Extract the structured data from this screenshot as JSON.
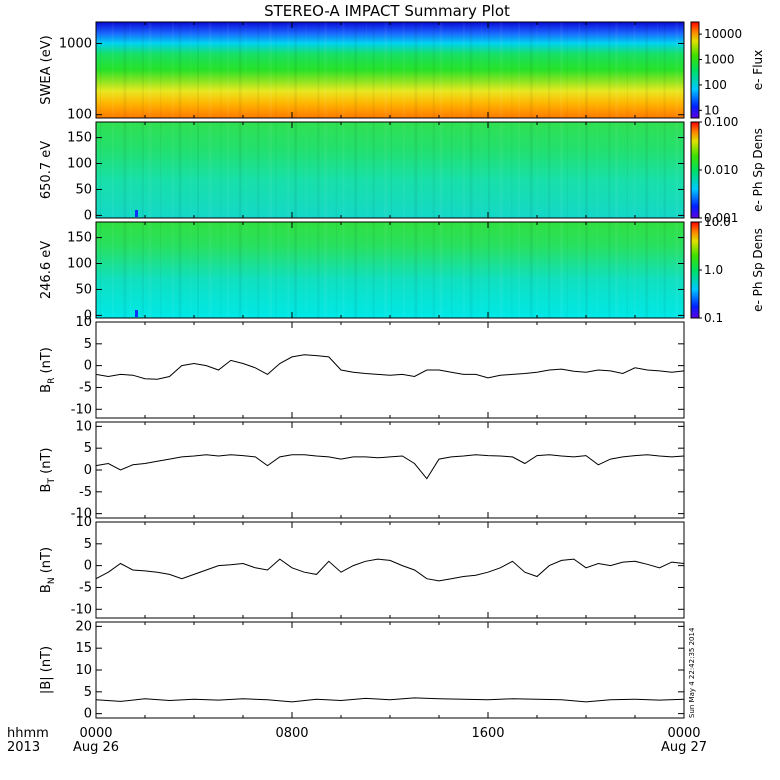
{
  "title": "STEREO-A IMPACT Summary Plot",
  "timestamp": "Sun May  4 22:42:35 2014",
  "footer": {
    "x_unit_label": "hhmm",
    "year": "2013",
    "start_date": "Aug 26",
    "end_date": "Aug 27"
  },
  "chart_data": [
    {
      "type": "heatmap",
      "panel": "swea-spectrogram",
      "ylabel": "SWEA (eV)",
      "yscale": "log",
      "ylim": [
        90,
        2000
      ],
      "yticks": [
        "1000",
        "100"
      ],
      "colorbar": {
        "label": "e- Flux",
        "scale": "log",
        "ticks": [
          "10000",
          "1000",
          "100",
          "10"
        ],
        "range": [
          5,
          30000
        ]
      }
    },
    {
      "type": "heatmap",
      "panel": "pad-650",
      "ylabel": "650.7 eV",
      "ylim": [
        -5,
        180
      ],
      "yticks": [
        "150",
        "100",
        "50",
        "0"
      ],
      "colorbar": {
        "label": "e- Ph Sp Dens",
        "scale": "log",
        "ticks": [
          "0.100",
          "0.010",
          "0.001"
        ],
        "range": [
          0.001,
          0.1
        ]
      }
    },
    {
      "type": "heatmap",
      "panel": "pad-246",
      "ylabel": "246.6 eV",
      "ylim": [
        -5,
        180
      ],
      "yticks": [
        "150",
        "100",
        "50",
        "0"
      ],
      "colorbar": {
        "label": "e- Ph Sp Dens",
        "scale": "log",
        "ticks": [
          "10.0",
          "1.0",
          "0.1"
        ],
        "range": [
          0.1,
          10
        ]
      }
    },
    {
      "type": "line",
      "panel": "br",
      "ylabel_main": "B",
      "ylabel_sub": "R",
      "ylabel_unit": " (nT)",
      "ylim": [
        -12,
        10
      ],
      "yticks": [
        "10",
        "5",
        "0",
        "-5",
        "-10"
      ],
      "x_hours": [
        0,
        0.5,
        1,
        1.5,
        2,
        2.5,
        3,
        3.5,
        4,
        4.5,
        5,
        5.5,
        6,
        6.5,
        7,
        7.5,
        8,
        8.5,
        9,
        9.5,
        10,
        10.5,
        11,
        11.5,
        12,
        12.5,
        13,
        13.5,
        14,
        14.5,
        15,
        15.5,
        16,
        16.5,
        17,
        17.5,
        18,
        18.5,
        19,
        19.5,
        20,
        20.5,
        21,
        21.5,
        22,
        22.5,
        23,
        23.5,
        24
      ],
      "values": [
        -2,
        -2.5,
        -2,
        -2.2,
        -3,
        -3.1,
        -2.5,
        0,
        0.5,
        0,
        -1,
        1.2,
        0.5,
        -0.5,
        -2,
        0.5,
        2,
        2.5,
        2.3,
        2,
        -1,
        -1.5,
        -1.8,
        -2,
        -2.2,
        -2,
        -2.5,
        -1,
        -1,
        -1.5,
        -2,
        -2,
        -2.8,
        -2.2,
        -2,
        -1.8,
        -1.5,
        -1,
        -0.8,
        -1.3,
        -1.5,
        -1,
        -1.2,
        -1.8,
        -0.5,
        -1,
        -1.2,
        -1.5,
        -1.2
      ]
    },
    {
      "type": "line",
      "panel": "bt",
      "ylabel_main": "B",
      "ylabel_sub": "T",
      "ylabel_unit": " (nT)",
      "ylim": [
        -11,
        11
      ],
      "yticks": [
        "10",
        "5",
        "0",
        "-5",
        "-10"
      ],
      "x_hours": [
        0,
        0.5,
        1,
        1.5,
        2,
        2.5,
        3,
        3.5,
        4,
        4.5,
        5,
        5.5,
        6,
        6.5,
        7,
        7.5,
        8,
        8.5,
        9,
        9.5,
        10,
        10.5,
        11,
        11.5,
        12,
        12.5,
        13,
        13.5,
        14,
        14.5,
        15,
        15.5,
        16,
        16.5,
        17,
        17.5,
        18,
        18.5,
        19,
        19.5,
        20,
        20.5,
        21,
        21.5,
        22,
        22.5,
        23,
        23.5,
        24
      ],
      "values": [
        1,
        1.5,
        0,
        1.2,
        1.5,
        2,
        2.5,
        3,
        3.2,
        3.5,
        3.2,
        3.5,
        3.3,
        3,
        1,
        3,
        3.5,
        3.5,
        3.2,
        3,
        2.5,
        3,
        3,
        2.8,
        3,
        3.2,
        1.5,
        -2,
        2.5,
        3,
        3.2,
        3.5,
        3.3,
        3.2,
        3,
        1.5,
        3.3,
        3.5,
        3.2,
        3,
        3.3,
        1.2,
        2.5,
        3,
        3.3,
        3.5,
        3.2,
        3,
        3.2
      ]
    },
    {
      "type": "line",
      "panel": "bn",
      "ylabel_main": "B",
      "ylabel_sub": "N",
      "ylabel_unit": " (nT)",
      "ylim": [
        -12,
        10
      ],
      "yticks": [
        "10",
        "5",
        "0",
        "-5",
        "-10"
      ],
      "x_hours": [
        0,
        0.5,
        1,
        1.5,
        2,
        2.5,
        3,
        3.5,
        4,
        4.5,
        5,
        5.5,
        6,
        6.5,
        7,
        7.5,
        8,
        8.5,
        9,
        9.5,
        10,
        10.5,
        11,
        11.5,
        12,
        12.5,
        13,
        13.5,
        14,
        14.5,
        15,
        15.5,
        16,
        16.5,
        17,
        17.5,
        18,
        18.5,
        19,
        19.5,
        20,
        20.5,
        21,
        21.5,
        22,
        22.5,
        23,
        23.5,
        24
      ],
      "values": [
        -3,
        -1.5,
        0.5,
        -1,
        -1.2,
        -1.5,
        -2,
        -3,
        -2,
        -1,
        0,
        0.2,
        0.5,
        -0.5,
        -1,
        1.5,
        -0.5,
        -1.5,
        -2,
        1,
        -1.5,
        0,
        1,
        1.5,
        1.2,
        0,
        -1,
        -3,
        -3.5,
        -3,
        -2.5,
        -2.2,
        -1.5,
        -0.5,
        1,
        -1.5,
        -2.5,
        0,
        1.2,
        1.5,
        -0.5,
        0.5,
        0,
        0.8,
        1,
        0.3,
        -0.5,
        0.8,
        0.5
      ]
    },
    {
      "type": "line",
      "panel": "bmag",
      "ylabel": "|B| (nT)",
      "ylim": [
        -1,
        21
      ],
      "yticks": [
        "20",
        "15",
        "10",
        "5",
        "0"
      ],
      "x_hours": [
        0,
        1,
        2,
        3,
        4,
        5,
        6,
        7,
        8,
        9,
        10,
        11,
        12,
        13,
        14,
        15,
        16,
        17,
        18,
        19,
        20,
        21,
        22,
        23,
        24
      ],
      "values": [
        3.2,
        2.8,
        3.4,
        3.0,
        3.3,
        3.1,
        3.4,
        3.2,
        2.7,
        3.3,
        3.0,
        3.5,
        3.2,
        3.6,
        3.4,
        3.3,
        3.2,
        3.4,
        3.3,
        3.2,
        2.7,
        3.2,
        3.3,
        3.1,
        3.3
      ]
    },
    {
      "type": "axis",
      "panel": "time-axis",
      "xlim_hours": [
        0,
        24
      ],
      "xticks": [
        {
          "hour": 0,
          "label": "0000"
        },
        {
          "hour": 8,
          "label": "0800"
        },
        {
          "hour": 16,
          "label": "1600"
        },
        {
          "hour": 24,
          "label": "0000"
        }
      ]
    }
  ]
}
